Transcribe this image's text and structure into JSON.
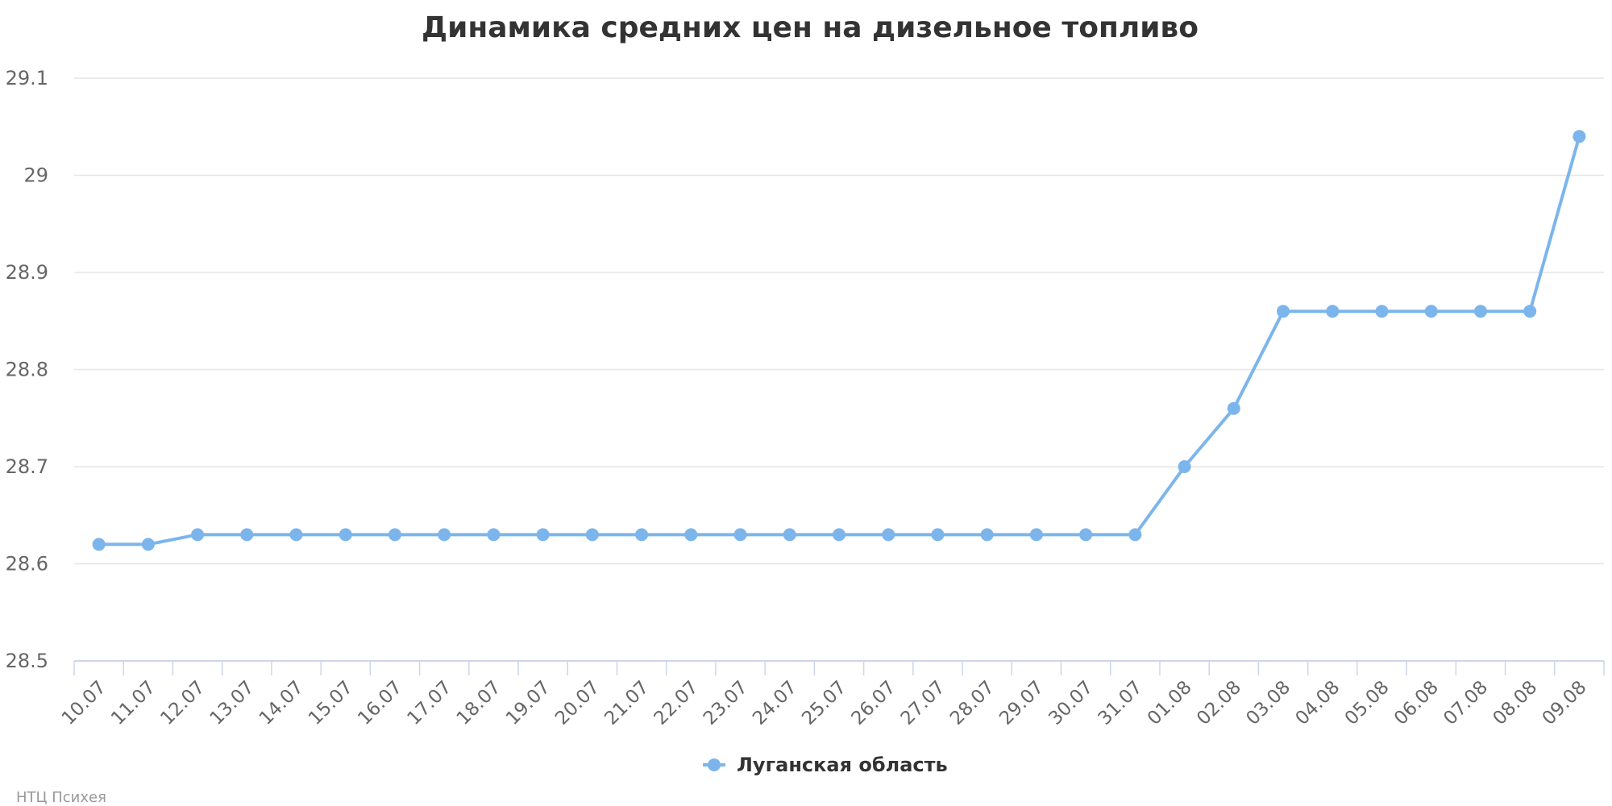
{
  "chart_data": {
    "type": "line",
    "title": "Динамика средних цен на дизельное топливо",
    "xlabel": "",
    "ylabel": "",
    "x": [
      "10.07",
      "11.07",
      "12.07",
      "13.07",
      "14.07",
      "15.07",
      "16.07",
      "17.07",
      "18.07",
      "19.07",
      "20.07",
      "21.07",
      "22.07",
      "23.07",
      "24.07",
      "25.07",
      "26.07",
      "27.07",
      "28.07",
      "29.07",
      "30.07",
      "31.07",
      "01.08",
      "02.08",
      "03.08",
      "04.08",
      "05.08",
      "06.08",
      "07.08",
      "08.08",
      "09.08"
    ],
    "series": [
      {
        "name": "Луганская область",
        "color": "#7cb5ec",
        "values": [
          28.62,
          28.62,
          28.63,
          28.63,
          28.63,
          28.63,
          28.63,
          28.63,
          28.63,
          28.63,
          28.63,
          28.63,
          28.63,
          28.63,
          28.63,
          28.63,
          28.63,
          28.63,
          28.63,
          28.63,
          28.63,
          28.63,
          28.7,
          28.76,
          28.86,
          28.86,
          28.86,
          28.86,
          28.86,
          28.86,
          29.04
        ]
      }
    ],
    "ylim": [
      28.5,
      29.1
    ],
    "yticks": [
      28.5,
      28.6,
      28.7,
      28.8,
      28.9,
      29,
      29.1
    ],
    "ytick_labels": [
      "28.5",
      "28.6",
      "28.7",
      "28.8",
      "28.9",
      "29",
      "29.1"
    ],
    "grid": true,
    "legend_position": "bottom-center"
  },
  "credit": "НТЦ Психея"
}
